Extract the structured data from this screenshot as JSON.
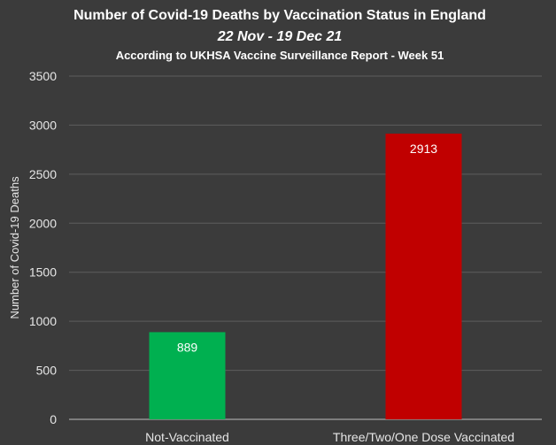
{
  "chart_data": {
    "type": "bar",
    "title": "Number of Covid-19 Deaths by Vaccination Status in England",
    "subtitle": "22 Nov - 19 Dec 21",
    "subtitle2": "According to UKHSA Vaccine Surveillance Report - Week 51",
    "xlabel": "",
    "ylabel": "Number of Covid-19 Deaths",
    "categories": [
      "Not-Vaccinated",
      "Three/Two/One Dose Vaccinated"
    ],
    "values": [
      889,
      2913
    ],
    "data_labels": [
      "889",
      "2913"
    ],
    "colors": [
      "#00b050",
      "#c00000"
    ],
    "ylim": [
      0,
      3500
    ],
    "yticks": [
      0,
      500,
      1000,
      1500,
      2000,
      2500,
      3000,
      3500
    ],
    "ytick_labels": [
      "0",
      "500",
      "1000",
      "1500",
      "2000",
      "2500",
      "3000",
      "3500"
    ],
    "grid": true,
    "legend": "none"
  }
}
